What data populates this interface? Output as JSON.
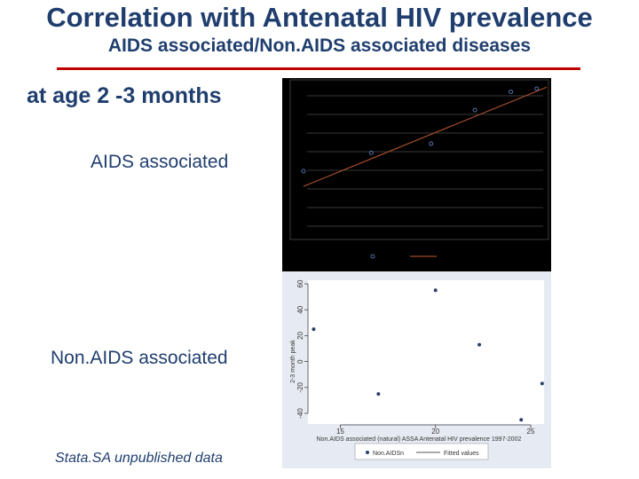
{
  "slide": {
    "title": "Correlation with Antenatal HIV prevalence",
    "subtitle": "AIDS associated/Non.AIDS associated diseases",
    "age_label": "at age 2 -3 months",
    "aids_label": "AIDS associated",
    "nonaids_label": "Non.AIDS associated",
    "source": "Stata.SA unpublished data"
  },
  "colors": {
    "title": "#1f3e6e",
    "rule": "#c00000",
    "dark_panel": "#000000",
    "fit_line_dark": "#a04a2a",
    "light_panel_bg": "#e6ebf3",
    "plot_bg": "#ffffff"
  },
  "chart_data": [
    {
      "type": "scatter",
      "title": "AIDS associated",
      "xlim": [
        13.6,
        25.8
      ],
      "ylim": [
        0,
        10
      ],
      "series": [
        {
          "name": "AIDS associated",
          "x": [
            13.6,
            17,
            20,
            22.2,
            24,
            25.3
          ],
          "y": [
            4.6,
            5.8,
            6.4,
            8.6,
            9.8,
            10
          ]
        },
        {
          "name": "Fitted values",
          "x": [
            13.6,
            25.8
          ],
          "y": [
            3.6,
            10.1
          ]
        }
      ],
      "outlier_note": "additional point below plot area",
      "grid": true
    },
    {
      "type": "scatter",
      "title": "",
      "xlabel": "Non.AIDS associated (natural) ASSA Antenatal HIV prevalence 1997-2002",
      "ylabel": "2-3 month peak",
      "xlim": [
        13.3,
        25.7
      ],
      "ylim": [
        -40,
        60
      ],
      "xticks": [
        "15",
        "20",
        "25"
      ],
      "xtick_values": [
        15,
        20,
        25
      ],
      "yticks": [
        "-40",
        "-20",
        "0",
        "20",
        "40",
        "60"
      ],
      "ytick_values": [
        -40,
        -20,
        0,
        20,
        40,
        60
      ],
      "series": [
        {
          "name": "Non.AIDSn",
          "x": [
            13.6,
            17,
            20,
            22.3,
            24.5,
            25.6
          ],
          "y": [
            25,
            -25,
            55,
            13,
            -45,
            -17
          ]
        },
        {
          "name": "Fitted values",
          "x": [],
          "y": []
        }
      ],
      "legend": [
        "Non.AIDSn",
        "Fitted values"
      ],
      "legend_position": "bottom",
      "grid": false
    }
  ]
}
